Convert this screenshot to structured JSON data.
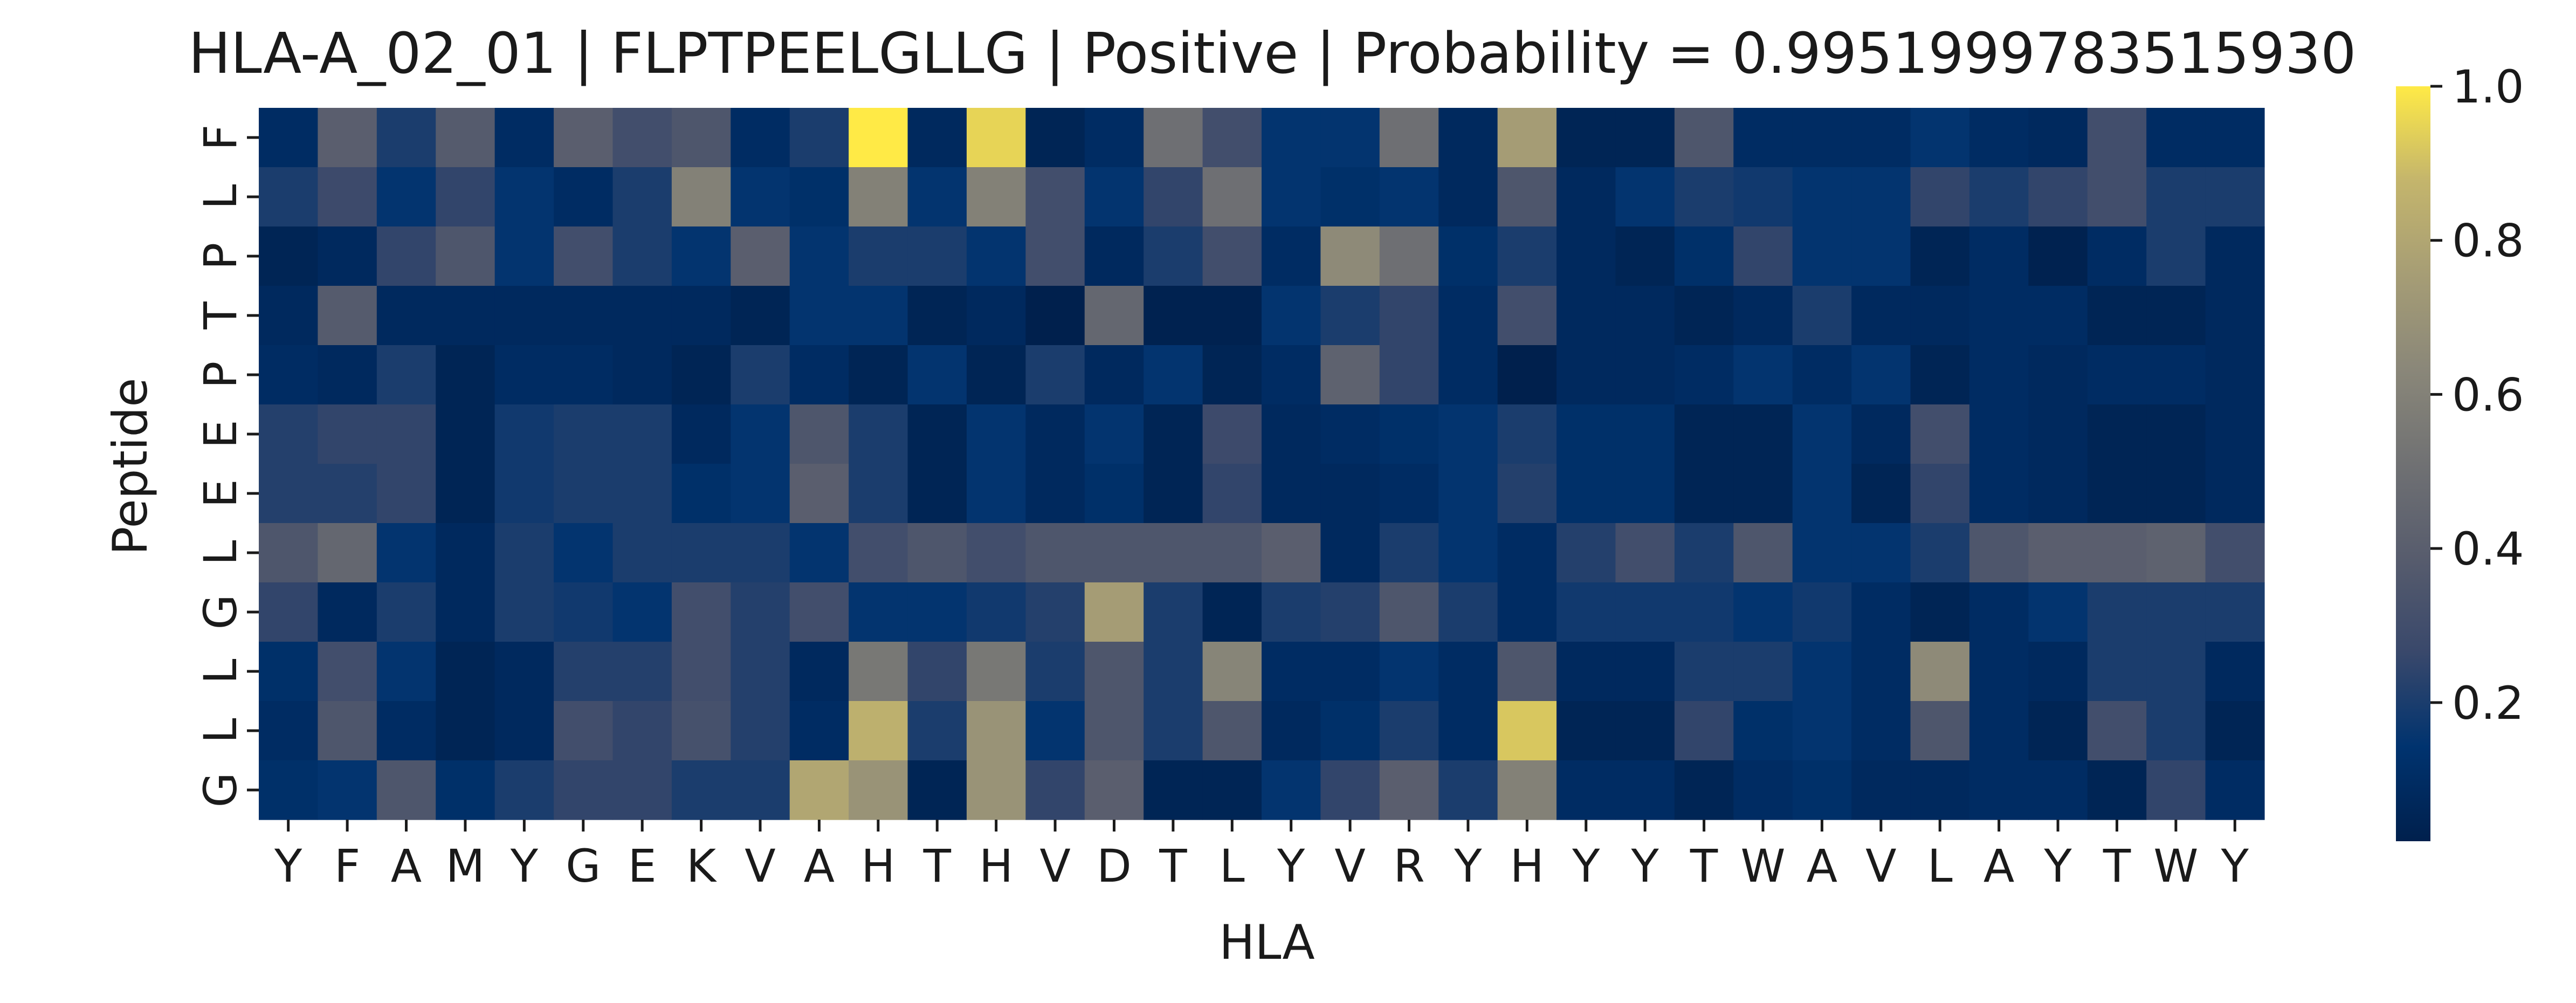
{
  "chart_data": {
    "type": "heatmap",
    "title": "HLA-A_02_01 | FLPTPEELGLLG | Positive | Probability = 0.9951999783515930",
    "xlabel": "HLA",
    "ylabel": "Peptide",
    "x_categories": [
      "Y",
      "F",
      "A",
      "M",
      "Y",
      "G",
      "E",
      "K",
      "V",
      "A",
      "H",
      "T",
      "H",
      "V",
      "D",
      "T",
      "L",
      "Y",
      "V",
      "R",
      "Y",
      "H",
      "Y",
      "Y",
      "T",
      "W",
      "A",
      "V",
      "L",
      "A",
      "Y",
      "T",
      "W",
      "Y"
    ],
    "y_categories": [
      "F",
      "L",
      "P",
      "T",
      "P",
      "E",
      "E",
      "L",
      "G",
      "L",
      "L",
      "G"
    ],
    "colormap": "cividis",
    "colorbar": {
      "min": 0.02,
      "max": 1.0,
      "ticks": [
        "0.2",
        "0.4",
        "0.6",
        "0.8",
        "1.0"
      ],
      "tick_values": [
        0.2,
        0.4,
        0.6,
        0.8,
        1.0
      ]
    },
    "values": [
      [
        0.1,
        0.4,
        0.2,
        0.38,
        0.1,
        0.4,
        0.3,
        0.35,
        0.1,
        0.2,
        1.0,
        0.08,
        0.95,
        0.05,
        0.1,
        0.5,
        0.3,
        0.15,
        0.15,
        0.5,
        0.08,
        0.75,
        0.05,
        0.05,
        0.35,
        0.1,
        0.1,
        0.1,
        0.15,
        0.1,
        0.08,
        0.3,
        0.1,
        0.1
      ],
      [
        0.2,
        0.28,
        0.15,
        0.25,
        0.15,
        0.1,
        0.2,
        0.6,
        0.15,
        0.12,
        0.6,
        0.15,
        0.6,
        0.3,
        0.15,
        0.25,
        0.5,
        0.15,
        0.12,
        0.15,
        0.08,
        0.35,
        0.08,
        0.15,
        0.2,
        0.18,
        0.15,
        0.15,
        0.25,
        0.2,
        0.25,
        0.3,
        0.2,
        0.2
      ],
      [
        0.05,
        0.08,
        0.25,
        0.35,
        0.15,
        0.3,
        0.2,
        0.15,
        0.4,
        0.15,
        0.2,
        0.2,
        0.15,
        0.3,
        0.08,
        0.2,
        0.3,
        0.1,
        0.65,
        0.5,
        0.12,
        0.2,
        0.08,
        0.05,
        0.12,
        0.25,
        0.15,
        0.15,
        0.05,
        0.1,
        0.03,
        0.1,
        0.2,
        0.08
      ],
      [
        0.08,
        0.38,
        0.08,
        0.08,
        0.08,
        0.08,
        0.08,
        0.08,
        0.05,
        0.15,
        0.15,
        0.05,
        0.08,
        0.02,
        0.45,
        0.03,
        0.03,
        0.15,
        0.2,
        0.25,
        0.1,
        0.3,
        0.08,
        0.08,
        0.05,
        0.08,
        0.2,
        0.08,
        0.08,
        0.1,
        0.1,
        0.05,
        0.05,
        0.08
      ],
      [
        0.1,
        0.08,
        0.2,
        0.05,
        0.1,
        0.1,
        0.08,
        0.05,
        0.2,
        0.1,
        0.05,
        0.15,
        0.05,
        0.2,
        0.08,
        0.15,
        0.05,
        0.1,
        0.42,
        0.25,
        0.1,
        0.02,
        0.08,
        0.08,
        0.1,
        0.15,
        0.1,
        0.15,
        0.05,
        0.1,
        0.08,
        0.1,
        0.1,
        0.08
      ],
      [
        0.22,
        0.25,
        0.25,
        0.05,
        0.18,
        0.2,
        0.2,
        0.08,
        0.15,
        0.35,
        0.2,
        0.05,
        0.15,
        0.08,
        0.15,
        0.05,
        0.28,
        0.08,
        0.1,
        0.12,
        0.15,
        0.2,
        0.12,
        0.12,
        0.05,
        0.05,
        0.15,
        0.08,
        0.3,
        0.1,
        0.08,
        0.05,
        0.05,
        0.08
      ],
      [
        0.22,
        0.22,
        0.25,
        0.05,
        0.18,
        0.2,
        0.2,
        0.12,
        0.15,
        0.4,
        0.2,
        0.05,
        0.15,
        0.08,
        0.12,
        0.05,
        0.25,
        0.08,
        0.08,
        0.1,
        0.15,
        0.22,
        0.12,
        0.12,
        0.05,
        0.05,
        0.15,
        0.05,
        0.25,
        0.1,
        0.08,
        0.05,
        0.05,
        0.08
      ],
      [
        0.35,
        0.45,
        0.15,
        0.08,
        0.2,
        0.15,
        0.2,
        0.2,
        0.2,
        0.15,
        0.3,
        0.35,
        0.3,
        0.35,
        0.35,
        0.35,
        0.35,
        0.4,
        0.08,
        0.2,
        0.15,
        0.1,
        0.22,
        0.3,
        0.2,
        0.35,
        0.15,
        0.15,
        0.2,
        0.35,
        0.4,
        0.4,
        0.42,
        0.3
      ],
      [
        0.25,
        0.08,
        0.2,
        0.08,
        0.2,
        0.18,
        0.15,
        0.3,
        0.22,
        0.3,
        0.15,
        0.15,
        0.18,
        0.22,
        0.75,
        0.2,
        0.05,
        0.2,
        0.22,
        0.35,
        0.2,
        0.1,
        0.18,
        0.18,
        0.18,
        0.15,
        0.18,
        0.1,
        0.05,
        0.1,
        0.15,
        0.2,
        0.2,
        0.2
      ],
      [
        0.12,
        0.3,
        0.15,
        0.05,
        0.08,
        0.22,
        0.22,
        0.3,
        0.22,
        0.08,
        0.55,
        0.25,
        0.55,
        0.2,
        0.35,
        0.2,
        0.62,
        0.1,
        0.1,
        0.15,
        0.1,
        0.35,
        0.08,
        0.08,
        0.2,
        0.2,
        0.15,
        0.1,
        0.65,
        0.1,
        0.08,
        0.2,
        0.2,
        0.08
      ],
      [
        0.1,
        0.35,
        0.1,
        0.05,
        0.08,
        0.3,
        0.25,
        0.32,
        0.22,
        0.1,
        0.85,
        0.2,
        0.7,
        0.15,
        0.35,
        0.2,
        0.35,
        0.08,
        0.12,
        0.2,
        0.1,
        0.92,
        0.05,
        0.05,
        0.25,
        0.12,
        0.15,
        0.1,
        0.35,
        0.1,
        0.05,
        0.3,
        0.2,
        0.05
      ],
      [
        0.12,
        0.15,
        0.35,
        0.12,
        0.2,
        0.25,
        0.25,
        0.2,
        0.2,
        0.8,
        0.7,
        0.05,
        0.7,
        0.25,
        0.4,
        0.05,
        0.05,
        0.15,
        0.25,
        0.4,
        0.2,
        0.6,
        0.1,
        0.1,
        0.05,
        0.1,
        0.12,
        0.08,
        0.08,
        0.1,
        0.1,
        0.05,
        0.25,
        0.1
      ]
    ]
  }
}
